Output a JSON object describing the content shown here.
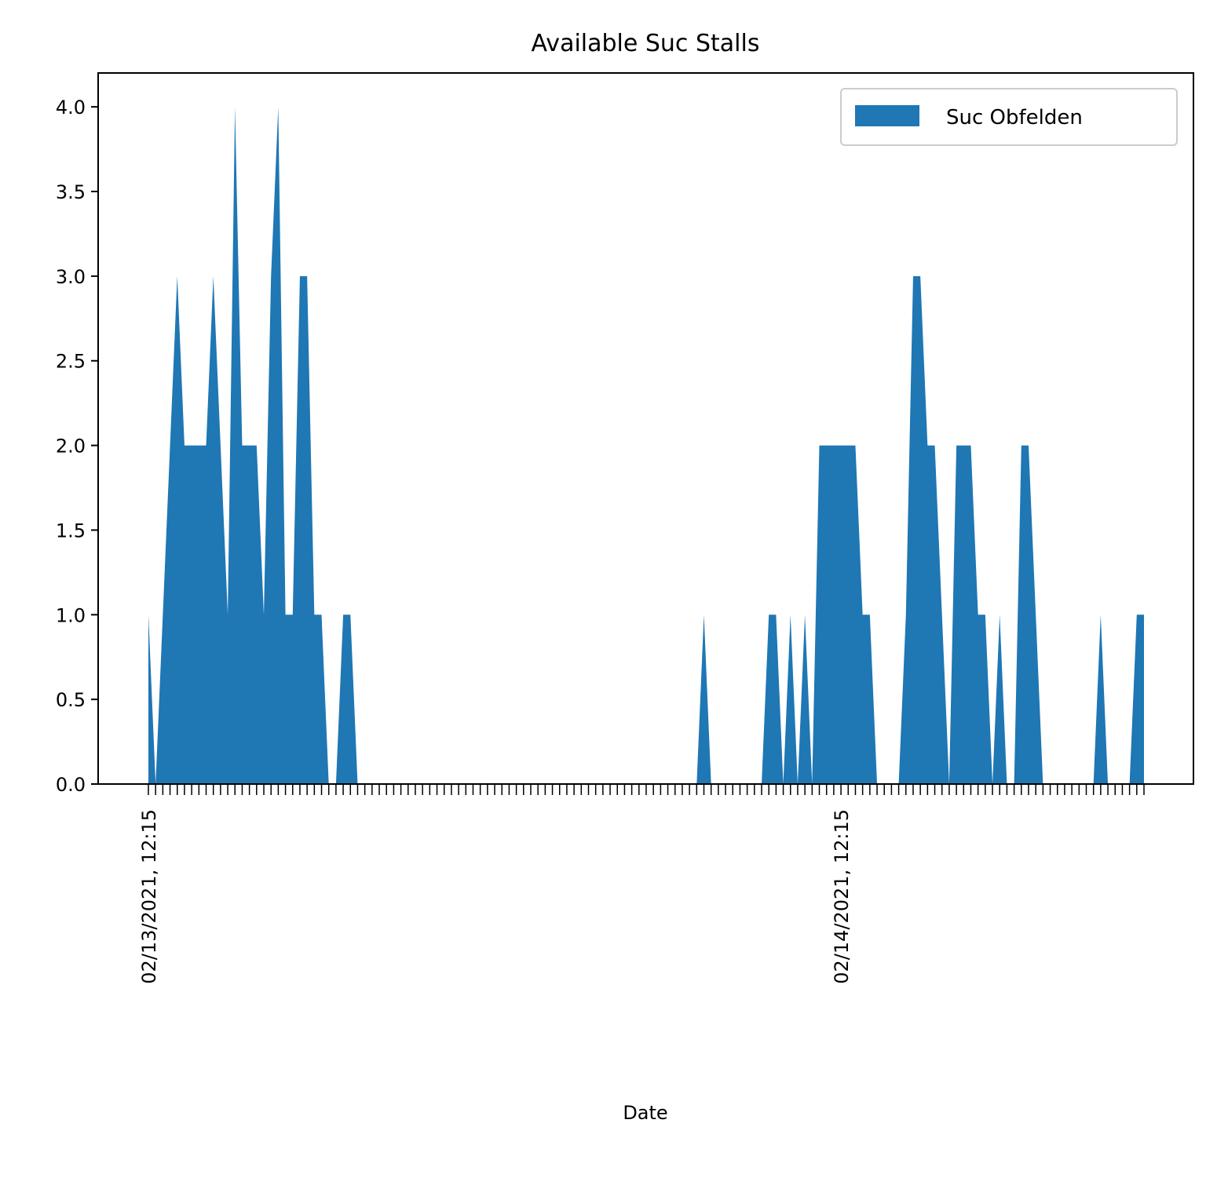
{
  "chart_data": {
    "type": "area",
    "title": "Available Suc Stalls",
    "xlabel": "Date",
    "ylabel": "",
    "x_tick_labels": [
      "02/13/2021, 12:15",
      "02/14/2021, 12:15"
    ],
    "x_tick_label_indices": [
      0,
      96
    ],
    "y_ticks": [
      "0.0",
      "0.5",
      "1.0",
      "1.5",
      "2.0",
      "2.5",
      "3.0",
      "3.5",
      "4.0"
    ],
    "ylim": [
      0,
      4.2
    ],
    "legend_position": "top-right",
    "grid": false,
    "color": "#1f77b4",
    "series": [
      {
        "name": "Suc Obfelden",
        "values": [
          1,
          0,
          1,
          2,
          3,
          2,
          2,
          2,
          2,
          3,
          2,
          1,
          4,
          2,
          2,
          2,
          1,
          3,
          4,
          1,
          1,
          3,
          3,
          1,
          1,
          0,
          0,
          1,
          1,
          0,
          0,
          0,
          0,
          0,
          0,
          0,
          0,
          0,
          0,
          0,
          0,
          0,
          0,
          0,
          0,
          0,
          0,
          0,
          0,
          0,
          0,
          0,
          0,
          0,
          0,
          0,
          0,
          0,
          0,
          0,
          0,
          0,
          0,
          0,
          0,
          0,
          0,
          0,
          0,
          0,
          0,
          0,
          0,
          0,
          0,
          0,
          0,
          1,
          0,
          0,
          0,
          0,
          0,
          0,
          0,
          0,
          1,
          1,
          0,
          1,
          0,
          1,
          0,
          2,
          2,
          2,
          2,
          2,
          2,
          1,
          1,
          0,
          0,
          0,
          0,
          1,
          3,
          3,
          2,
          2,
          1,
          0,
          2,
          2,
          2,
          1,
          1,
          0,
          1,
          0,
          0,
          2,
          2,
          1,
          0,
          0,
          0,
          0,
          0,
          0,
          0,
          0,
          1,
          0,
          0,
          0,
          0,
          1,
          1
        ]
      }
    ]
  }
}
